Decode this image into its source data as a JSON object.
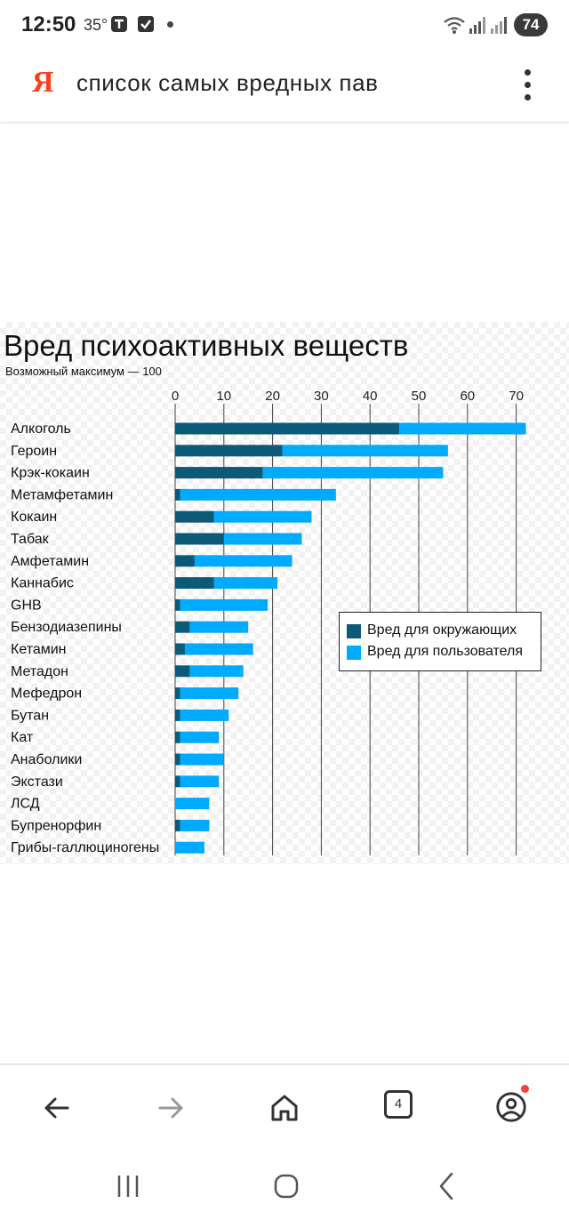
{
  "status_bar": {
    "time": "12:50",
    "temperature": "35°",
    "battery": "74"
  },
  "search": {
    "logo": "Я",
    "query": "список самых вредных пав"
  },
  "colors": {
    "harm_others": "#0d5a78",
    "harm_users": "#00aaff",
    "logo": "#fc3f1d"
  },
  "chart_data": {
    "type": "bar",
    "stacked": true,
    "orientation": "horizontal",
    "title": "Вред психоактивных веществ",
    "subtitle": "Возможный максимум — 100",
    "xlim": [
      0,
      80
    ],
    "x_ticks": [
      0,
      10,
      20,
      30,
      40,
      50,
      60,
      70
    ],
    "grid": true,
    "legend_position": "right-middle",
    "categories": [
      "Алкоголь",
      "Героин",
      "Крэк-кокаин",
      "Метамфетамин",
      "Кокаин",
      "Табак",
      "Амфетамин",
      "Каннабис",
      "GHB",
      "Бензодиазепины",
      "Кетамин",
      "Метадон",
      "Мефедрон",
      "Бутан",
      "Кат",
      "Анаболики",
      "Экстази",
      "ЛСД",
      "Бупренорфин",
      "Грибы-галлюциногены"
    ],
    "series": [
      {
        "name": "Вред для окружающих",
        "color": "#0d5a78",
        "values": [
          46,
          22,
          18,
          1,
          8,
          10,
          4,
          8,
          1,
          3,
          2,
          3,
          1,
          1,
          1,
          1,
          1,
          0,
          1,
          0
        ]
      },
      {
        "name": "Вред для пользователя",
        "color": "#00aaff",
        "values": [
          26,
          34,
          37,
          32,
          20,
          16,
          20,
          13,
          18,
          12,
          14,
          11,
          12,
          10,
          8,
          9,
          8,
          7,
          6,
          6
        ]
      }
    ]
  },
  "bottom_nav": {
    "tabs_count": "4"
  }
}
